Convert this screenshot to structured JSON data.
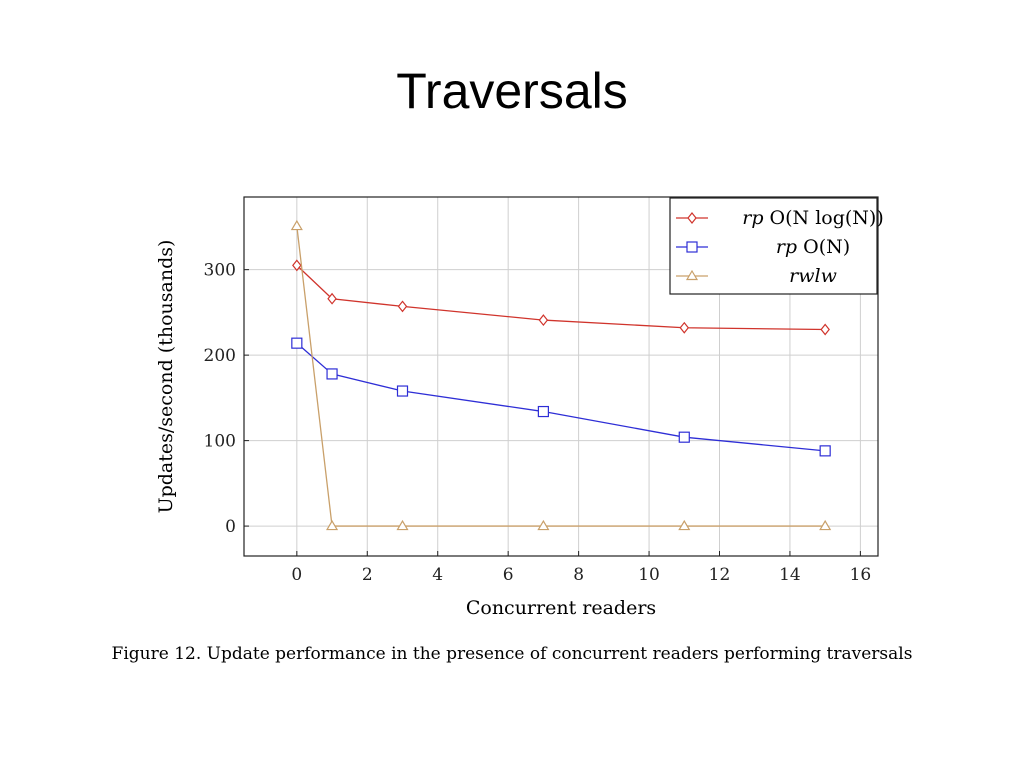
{
  "slide": {
    "title": "Traversals"
  },
  "figure": {
    "caption": "Figure 12. Update performance in the presence of concurrent readers performing traversals"
  },
  "chart_data": {
    "type": "line",
    "xlabel": "Concurrent readers",
    "ylabel": "Updates/second (thousands)",
    "xlim": [
      -1.5,
      16.5
    ],
    "ylim": [
      -35,
      385
    ],
    "xticks": [
      0,
      2,
      4,
      6,
      8,
      10,
      12,
      14,
      16
    ],
    "yticks": [
      0,
      100,
      200,
      300
    ],
    "grid": true,
    "legend_position": "top-right",
    "series": [
      {
        "name": "rp O(N log(N))",
        "legend_parts": [
          "rp",
          "O(N log(N))"
        ],
        "color": "#d0342c",
        "marker": "diamond",
        "x": [
          0,
          1,
          3,
          7,
          11,
          15
        ],
        "y": [
          305,
          266,
          257,
          241,
          232,
          230
        ]
      },
      {
        "name": "rp O(N)",
        "legend_parts": [
          "rp",
          "O(N)"
        ],
        "color": "#2e2ed6",
        "marker": "square",
        "x": [
          0,
          1,
          3,
          7,
          11,
          15
        ],
        "y": [
          214,
          178,
          158,
          134,
          104,
          88
        ]
      },
      {
        "name": "rwlw",
        "legend_parts": [
          "rwlw",
          ""
        ],
        "color": "#c9a06a",
        "marker": "triangle",
        "x": [
          0,
          1,
          3,
          7,
          11,
          15
        ],
        "y": [
          351,
          0,
          0,
          0,
          0,
          0
        ]
      }
    ]
  }
}
